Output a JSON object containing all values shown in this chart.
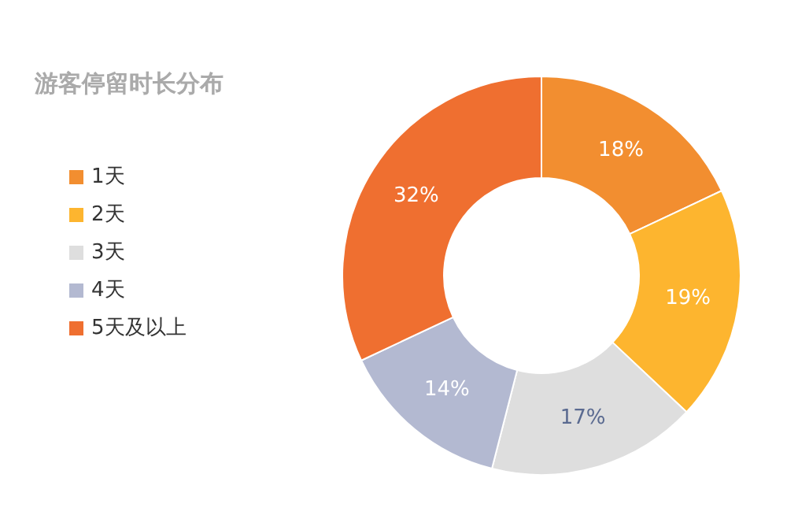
{
  "chart_data": {
    "type": "donut",
    "title": "游客停留时长分布",
    "categories": [
      "1天",
      "2天",
      "3天",
      "4天",
      "5天及以上"
    ],
    "values": [
      18,
      19,
      17,
      14,
      32
    ],
    "colors": [
      "#f28e30",
      "#fdb52f",
      "#dedede",
      "#b3b9d1",
      "#ef6f30"
    ],
    "value_labels": [
      "18%",
      "19%",
      "17%",
      "14%",
      "32%"
    ],
    "legend": "left"
  }
}
